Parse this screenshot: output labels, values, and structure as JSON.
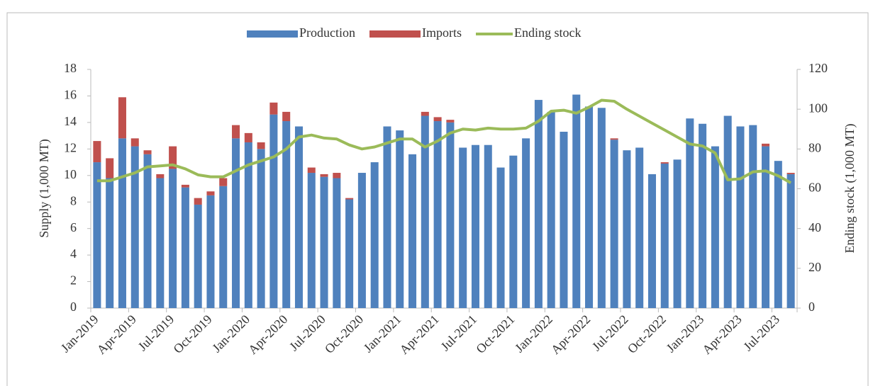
{
  "chart_data": {
    "type": "bar",
    "stacked": true,
    "y_label": "Supply (1,000 MT)",
    "y2_label": "Ending stock (1,000 MT)",
    "categories": [
      "Jan-2019",
      null,
      null,
      "Apr-2019",
      null,
      null,
      "Jul-2019",
      null,
      null,
      "Oct-2019",
      null,
      null,
      "Jan-2020",
      null,
      null,
      "Apr-2020",
      null,
      null,
      "Jul-2020",
      null,
      null,
      "Oct-2020",
      null,
      null,
      "Jan-2021",
      null,
      null,
      "Apr-2021",
      null,
      null,
      "Jul-2021",
      null,
      null,
      "Oct-2021",
      null,
      null,
      "Jan-2022",
      null,
      null,
      "Apr-2022",
      null,
      null,
      "Jul-2022",
      null,
      null,
      "Oct-2022",
      null,
      null,
      "Jan-2023",
      null,
      null,
      "Apr-2023",
      null,
      null,
      "Jul-2023",
      null
    ],
    "series": [
      {
        "name": "Production",
        "color": "#4f81bd",
        "values": [
          11.0,
          9.8,
          12.8,
          12.2,
          11.6,
          9.8,
          10.5,
          9.1,
          7.8,
          8.5,
          9.2,
          12.8,
          12.5,
          12.0,
          14.6,
          14.1,
          13.7,
          10.2,
          9.9,
          9.8,
          8.2,
          10.2,
          11.0,
          13.7,
          13.4,
          11.6,
          14.5,
          14.1,
          14.0,
          12.1,
          12.3,
          12.3,
          10.6,
          11.5,
          12.8,
          15.7,
          14.8,
          13.3,
          16.1,
          15.2,
          15.1,
          12.7,
          11.9,
          12.1,
          10.1,
          10.9,
          11.2,
          14.3,
          13.9,
          12.2,
          14.5,
          13.7,
          13.8,
          12.2,
          11.1,
          10.1
        ]
      },
      {
        "name": "Imports",
        "color": "#c0504d",
        "values": [
          1.6,
          1.5,
          3.1,
          0.6,
          0.3,
          0.3,
          1.7,
          0.2,
          0.5,
          0.3,
          0.6,
          1.0,
          0.7,
          0.5,
          0.9,
          0.7,
          0,
          0.4,
          0.2,
          0.4,
          0.1,
          0,
          0,
          0,
          0,
          0,
          0.3,
          0.3,
          0.2,
          0,
          0,
          0,
          0,
          0,
          0,
          0,
          0,
          0,
          0,
          0,
          0,
          0.1,
          0,
          0,
          0,
          0.1,
          0,
          0,
          0,
          0,
          0,
          0,
          0,
          0.2,
          0,
          0.1
        ]
      },
      {
        "name": "Ending stock",
        "color": "#9bbb59",
        "type": "line",
        "axis": "y2",
        "values": [
          64,
          64,
          66,
          68,
          71,
          71.5,
          72,
          70,
          67,
          66,
          66,
          69,
          72,
          74,
          76,
          80,
          86,
          87,
          85.5,
          85,
          82,
          80,
          81,
          83,
          85,
          85,
          81,
          84,
          88,
          90,
          89.5,
          90.5,
          90,
          90,
          90.5,
          94,
          99,
          99.5,
          98,
          101,
          104.5,
          104,
          100,
          96.5,
          93,
          89.5,
          86,
          82.5,
          81.5,
          78,
          64.5,
          65,
          68.5,
          69,
          66.5,
          63
        ]
      }
    ],
    "ylim": [
      0,
      18
    ],
    "yticks": [
      0,
      2,
      4,
      6,
      8,
      10,
      12,
      14,
      16,
      18
    ],
    "y2lim": [
      0,
      120
    ],
    "y2ticks": [
      0,
      20,
      40,
      60,
      80,
      100,
      120
    ],
    "legend": "top"
  }
}
